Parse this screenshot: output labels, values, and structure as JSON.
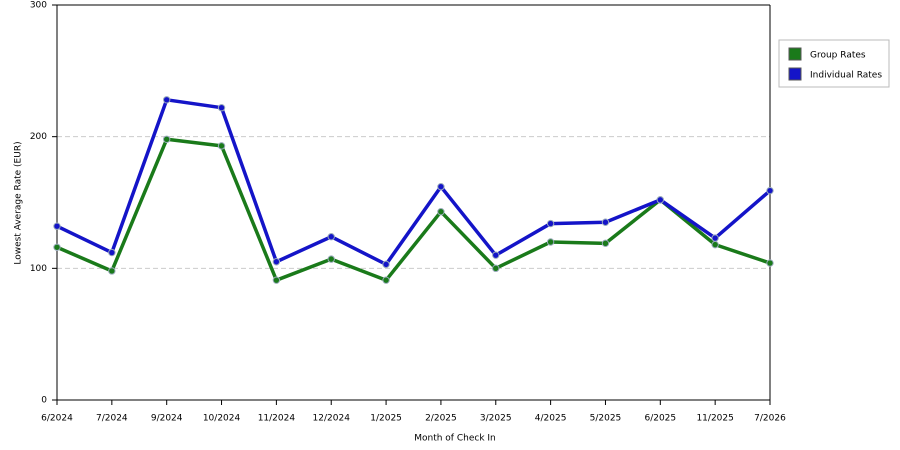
{
  "chart_data": {
    "type": "line",
    "x_label": "Month of Check In",
    "y_label": "Lowest Average Rate (EUR)",
    "categories": [
      "6/2024",
      "7/2024",
      "9/2024",
      "10/2024",
      "11/2024",
      "12/2024",
      "1/2025",
      "2/2025",
      "3/2025",
      "4/2025",
      "5/2025",
      "6/2025",
      "11/2025",
      "7/2026"
    ],
    "series": [
      {
        "name": "Group Rates",
        "color": "#1a7a1a",
        "values": [
          116,
          98,
          198,
          193,
          91,
          107,
          91,
          143,
          100,
          120,
          119,
          152,
          118,
          104
        ]
      },
      {
        "name": "Individual Rates",
        "color": "#1414c8",
        "values": [
          132,
          112,
          228,
          222,
          105,
          124,
          103,
          162,
          110,
          134,
          135,
          152,
          123,
          159
        ]
      }
    ],
    "ylim": [
      0,
      300
    ],
    "yticks": [
      0,
      100,
      200,
      300
    ],
    "grid": true,
    "legend": "right"
  }
}
